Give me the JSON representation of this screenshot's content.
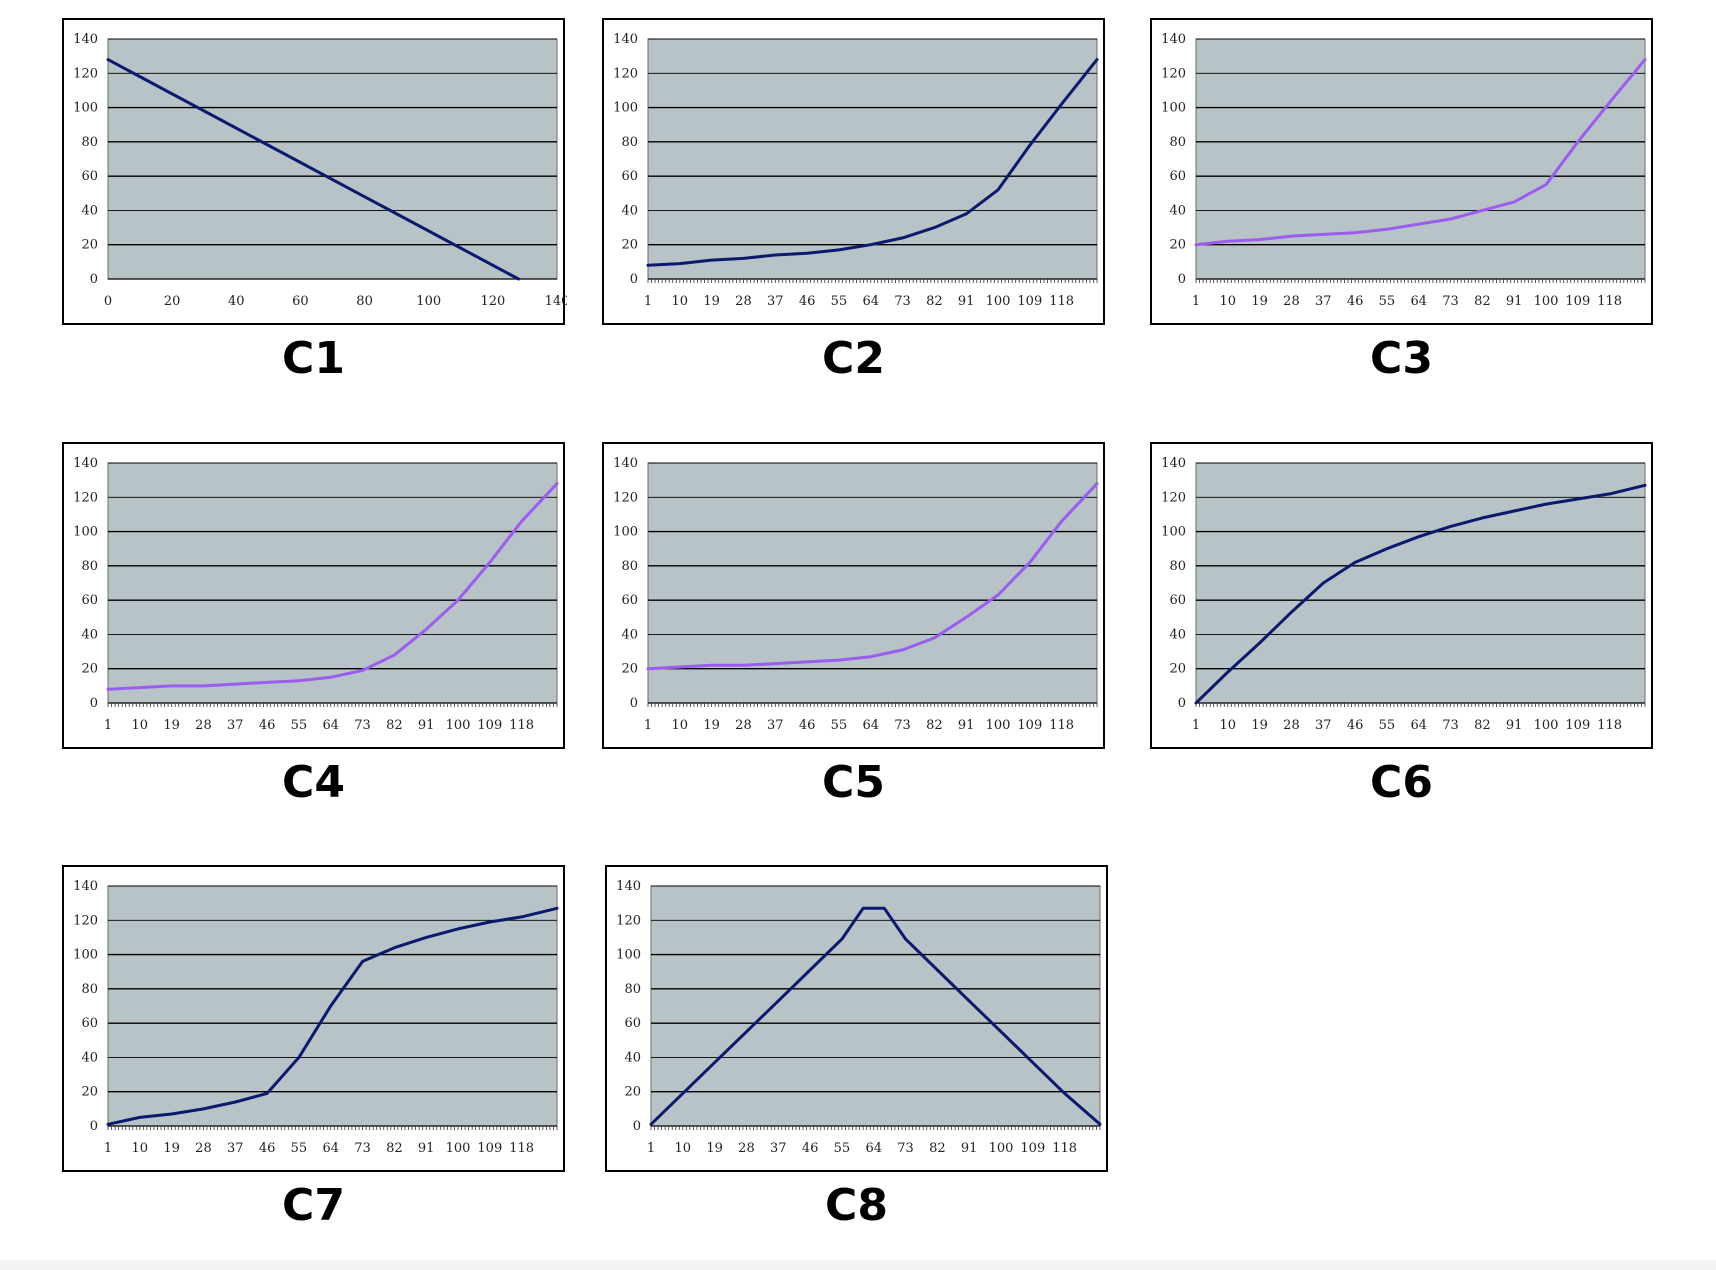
{
  "charts": [
    {
      "caption": "C1",
      "line_color": "#0b1a6e",
      "xaxis": "numeric"
    },
    {
      "caption": "C2",
      "line_color": "#0b1a6e",
      "xaxis": "category"
    },
    {
      "caption": "C3",
      "line_color": "#9b5cf0",
      "xaxis": "category"
    },
    {
      "caption": "C4",
      "line_color": "#9b5cf0",
      "xaxis": "category"
    },
    {
      "caption": "C5",
      "line_color": "#9b5cf0",
      "xaxis": "category"
    },
    {
      "caption": "C6",
      "line_color": "#0b1a6e",
      "xaxis": "category"
    },
    {
      "caption": "C7",
      "line_color": "#0b1a6e",
      "xaxis": "category"
    },
    {
      "caption": "C8",
      "line_color": "#0b1a6e",
      "xaxis": "category"
    }
  ],
  "chart_data": [
    {
      "type": "line",
      "title": "C1",
      "xlim": [
        0,
        140
      ],
      "ylim": [
        0,
        140
      ],
      "x_ticks": [
        0,
        20,
        40,
        60,
        80,
        100,
        120,
        140
      ],
      "y_ticks": [
        0,
        20,
        40,
        60,
        80,
        100,
        120,
        140
      ],
      "x": [
        0,
        128
      ],
      "y": [
        128,
        0
      ],
      "grid": true
    },
    {
      "type": "line",
      "title": "C2",
      "xlim": [
        1,
        128
      ],
      "ylim": [
        0,
        140
      ],
      "x_ticks": [
        1,
        10,
        19,
        28,
        37,
        46,
        55,
        64,
        73,
        82,
        91,
        100,
        109,
        118
      ],
      "y_ticks": [
        0,
        20,
        40,
        60,
        80,
        100,
        120,
        140
      ],
      "x": [
        1,
        10,
        19,
        28,
        37,
        46,
        55,
        64,
        73,
        82,
        91,
        100,
        109,
        118,
        128
      ],
      "y": [
        8,
        9,
        11,
        12,
        14,
        15,
        17,
        20,
        24,
        30,
        38,
        52,
        78,
        102,
        128
      ],
      "grid": true
    },
    {
      "type": "line",
      "title": "C3",
      "xlim": [
        1,
        128
      ],
      "ylim": [
        0,
        140
      ],
      "x_ticks": [
        1,
        10,
        19,
        28,
        37,
        46,
        55,
        64,
        73,
        82,
        91,
        100,
        109,
        118
      ],
      "y_ticks": [
        0,
        20,
        40,
        60,
        80,
        100,
        120,
        140
      ],
      "x": [
        1,
        10,
        19,
        28,
        37,
        46,
        55,
        64,
        73,
        82,
        91,
        100,
        109,
        118,
        128
      ],
      "y": [
        20,
        22,
        23,
        25,
        26,
        27,
        29,
        32,
        35,
        40,
        45,
        55,
        80,
        103,
        128
      ],
      "grid": true
    },
    {
      "type": "line",
      "title": "C4",
      "xlim": [
        1,
        128
      ],
      "ylim": [
        0,
        140
      ],
      "x_ticks": [
        1,
        10,
        19,
        28,
        37,
        46,
        55,
        64,
        73,
        82,
        91,
        100,
        109,
        118
      ],
      "y_ticks": [
        0,
        20,
        40,
        60,
        80,
        100,
        120,
        140
      ],
      "x": [
        1,
        10,
        19,
        28,
        37,
        46,
        55,
        64,
        73,
        82,
        91,
        100,
        109,
        118,
        128
      ],
      "y": [
        8,
        9,
        10,
        10,
        11,
        12,
        13,
        15,
        19,
        28,
        43,
        60,
        82,
        106,
        128
      ],
      "grid": true
    },
    {
      "type": "line",
      "title": "C5",
      "xlim": [
        1,
        128
      ],
      "ylim": [
        0,
        140
      ],
      "x_ticks": [
        1,
        10,
        19,
        28,
        37,
        46,
        55,
        64,
        73,
        82,
        91,
        100,
        109,
        118
      ],
      "y_ticks": [
        0,
        20,
        40,
        60,
        80,
        100,
        120,
        140
      ],
      "x": [
        1,
        10,
        19,
        28,
        37,
        46,
        55,
        64,
        73,
        82,
        91,
        100,
        109,
        118,
        128
      ],
      "y": [
        20,
        21,
        22,
        22,
        23,
        24,
        25,
        27,
        31,
        38,
        50,
        63,
        82,
        106,
        128
      ],
      "grid": true
    },
    {
      "type": "line",
      "title": "C6",
      "xlim": [
        1,
        128
      ],
      "ylim": [
        0,
        140
      ],
      "x_ticks": [
        1,
        10,
        19,
        28,
        37,
        46,
        55,
        64,
        73,
        82,
        91,
        100,
        109,
        118
      ],
      "y_ticks": [
        0,
        20,
        40,
        60,
        80,
        100,
        120,
        140
      ],
      "x": [
        1,
        10,
        19,
        28,
        37,
        46,
        55,
        64,
        73,
        82,
        91,
        100,
        109,
        118,
        128
      ],
      "y": [
        0,
        18,
        35,
        53,
        70,
        82,
        90,
        97,
        103,
        108,
        112,
        116,
        119,
        122,
        127
      ],
      "grid": true
    },
    {
      "type": "line",
      "title": "C7",
      "xlim": [
        1,
        128
      ],
      "ylim": [
        0,
        140
      ],
      "x_ticks": [
        1,
        10,
        19,
        28,
        37,
        46,
        55,
        64,
        73,
        82,
        91,
        100,
        109,
        118
      ],
      "y_ticks": [
        0,
        20,
        40,
        60,
        80,
        100,
        120,
        140
      ],
      "x": [
        1,
        10,
        19,
        28,
        37,
        46,
        55,
        64,
        73,
        82,
        91,
        100,
        109,
        118,
        128
      ],
      "y": [
        1,
        5,
        7,
        10,
        14,
        19,
        40,
        70,
        96,
        104,
        110,
        115,
        119,
        122,
        127
      ],
      "grid": true
    },
    {
      "type": "line",
      "title": "C8",
      "xlim": [
        1,
        128
      ],
      "ylim": [
        0,
        140
      ],
      "x_ticks": [
        1,
        10,
        19,
        28,
        37,
        46,
        55,
        64,
        73,
        82,
        91,
        100,
        109,
        118
      ],
      "y_ticks": [
        0,
        20,
        40,
        60,
        80,
        100,
        120,
        140
      ],
      "x": [
        1,
        10,
        19,
        28,
        37,
        46,
        55,
        61,
        67,
        73,
        82,
        91,
        100,
        109,
        118,
        128
      ],
      "y": [
        1,
        19,
        37,
        55,
        73,
        91,
        109,
        127,
        127,
        109,
        91,
        73,
        55,
        37,
        19,
        1
      ],
      "grid": true
    }
  ]
}
